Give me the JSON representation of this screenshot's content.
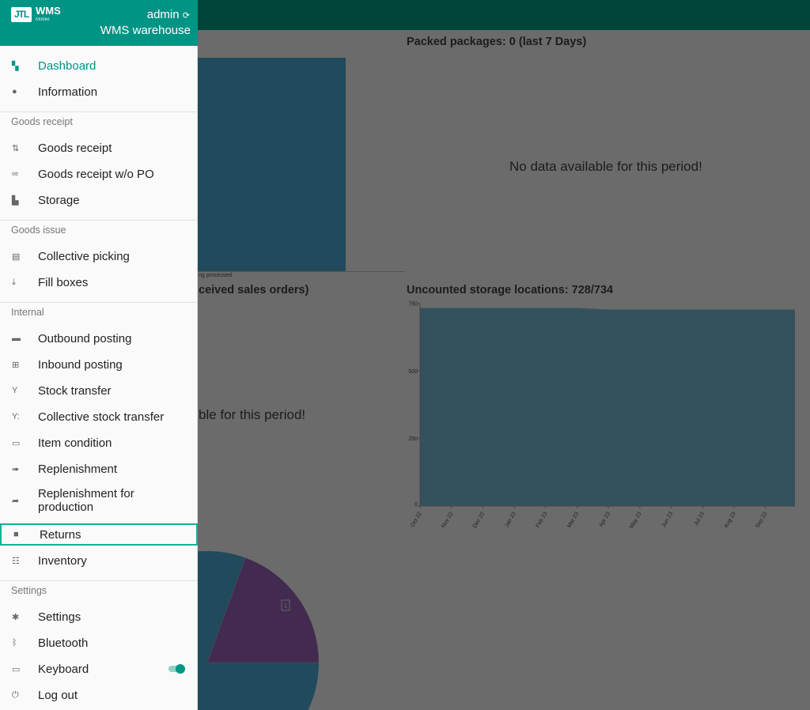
{
  "sidebar": {
    "logo": {
      "text": "JTL",
      "brand": "WMS",
      "sub": "Mobile"
    },
    "user": "admin",
    "warehouse": "WMS warehouse",
    "refresh_icon": "sync-icon",
    "items": [
      {
        "label": "Dashboard",
        "icon": "dashboard-icon",
        "active": true
      },
      {
        "label": "Information",
        "icon": "info-icon"
      }
    ],
    "sections": [
      {
        "title": "Goods receipt",
        "items": [
          {
            "label": "Goods receipt",
            "icon": "arrows-updown-icon"
          },
          {
            "label": "Goods receipt w/o PO",
            "icon": "infinity-icon"
          },
          {
            "label": "Storage",
            "icon": "shelf-icon"
          }
        ]
      },
      {
        "title": "Goods issue",
        "items": [
          {
            "label": "Collective picking",
            "icon": "clipboard-icon"
          },
          {
            "label": "Fill boxes",
            "icon": "download-icon"
          }
        ]
      },
      {
        "title": "Internal",
        "items": [
          {
            "label": "Outbound posting",
            "icon": "minus-box-icon"
          },
          {
            "label": "Inbound posting",
            "icon": "plus-box-icon"
          },
          {
            "label": "Stock transfer",
            "icon": "fork-icon"
          },
          {
            "label": "Collective stock transfer",
            "icon": "fork-multi-icon"
          },
          {
            "label": "Item condition",
            "icon": "monitor-icon"
          },
          {
            "label": "Replenishment",
            "icon": "double-arrow-icon"
          },
          {
            "label": "Replenishment for production",
            "icon": "share-arrow-icon"
          },
          {
            "label": "Returns",
            "icon": "briefcase-icon",
            "focused": true
          },
          {
            "label": "Inventory",
            "icon": "list-box-icon"
          }
        ]
      },
      {
        "title": "Settings",
        "items": [
          {
            "label": "Settings",
            "icon": "gear-icon"
          },
          {
            "label": "Bluetooth",
            "icon": "bluetooth-icon"
          },
          {
            "label": "Keyboard",
            "icon": "keyboard-icon",
            "toggle": true
          },
          {
            "label": "Log out",
            "icon": "power-icon"
          }
        ]
      }
    ]
  },
  "dashboard": {
    "packed_title": "Packed packages: 0 (last 7 Days)",
    "packed_nodata": "No data available for this period!",
    "left_bar_label_visible": "ng processed",
    "orders_title_visible": "ceived sales orders)",
    "orders_nodata_visible": "ble for this period!",
    "pie_label": "1"
  },
  "chart_data": {
    "type": "area",
    "title": "Uncounted storage locations: 728/734",
    "x": [
      "Oct 22",
      "Nov 22",
      "Dec 22",
      "Jan 23",
      "Feb 23",
      "Mar 23",
      "Apr 23",
      "May 23",
      "Jun 23",
      "Jul 23",
      "Aug 23",
      "Sep 23"
    ],
    "values": [
      734,
      734,
      734,
      734,
      734,
      734,
      728,
      728,
      728,
      728,
      728,
      728
    ],
    "yticks": [
      0,
      250,
      500,
      750
    ],
    "ylim": [
      0,
      750
    ],
    "color": "#34525e"
  }
}
